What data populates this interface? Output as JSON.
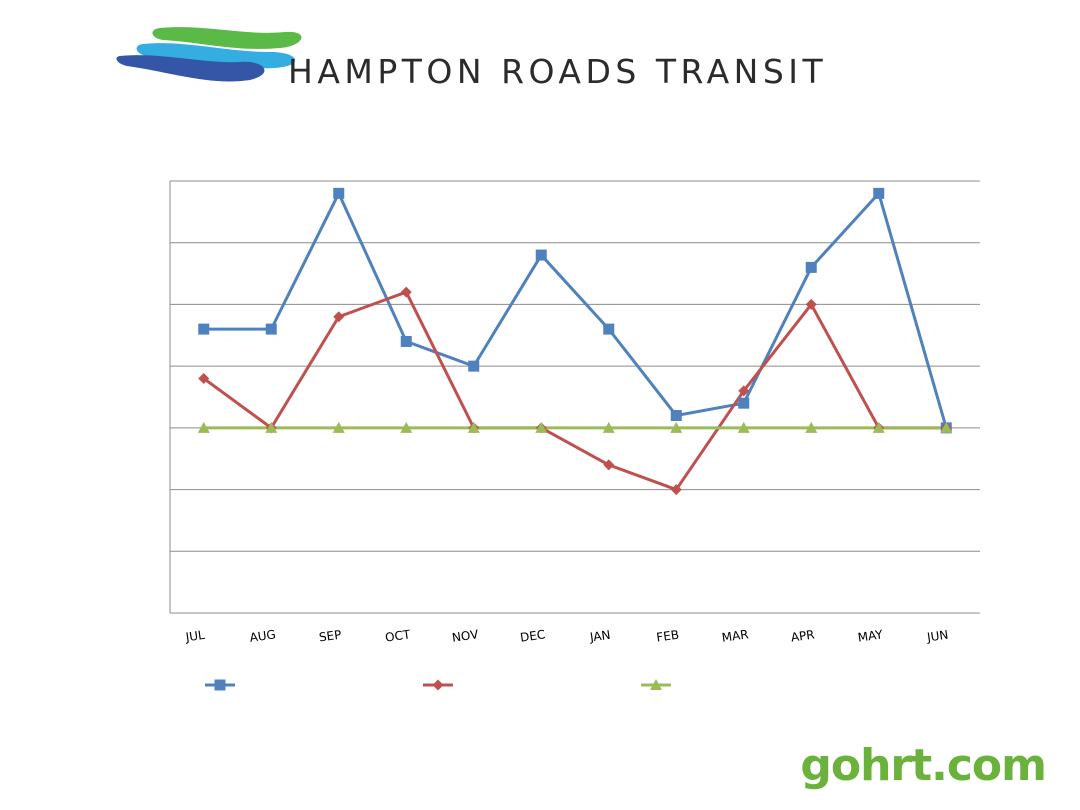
{
  "header": {
    "brand_name": "HAMPTON ROADS TRANSIT",
    "logo_icon": "hrt-wave-logo",
    "logo_colors": [
      "#5bb947",
      "#34aee0",
      "#3556a6"
    ]
  },
  "footer": {
    "url": "gohrt.com",
    "url_color": "#6ab23c"
  },
  "chart_data": {
    "type": "line",
    "categories": [
      "JUL",
      "AUG",
      "SEP",
      "OCT",
      "NOV",
      "DEC",
      "JAN",
      "FEB",
      "MAR",
      "APR",
      "MAY",
      "JUN"
    ],
    "title": "",
    "xlabel": "",
    "ylabel": "",
    "ylim": [
      -3,
      4
    ],
    "y_tick_labels_visible": false,
    "grid": true,
    "legend_position": "bottom",
    "series": [
      {
        "values": [
          1.6,
          1.6,
          3.8,
          1.4,
          1.0,
          2.8,
          1.6,
          0.2,
          0.4,
          2.6,
          3.8,
          0.0
        ],
        "color": "#4f81bd",
        "marker": "square"
      },
      {
        "values": [
          0.8,
          0.0,
          1.8,
          2.2,
          0.0,
          0.0,
          -0.6,
          -1.0,
          0.6,
          2.0,
          0.0,
          0.0
        ],
        "color": "#c0504d",
        "marker": "diamond"
      },
      {
        "values": [
          0.0,
          0.0,
          0.0,
          0.0,
          0.0,
          0.0,
          0.0,
          0.0,
          0.0,
          0.0,
          0.0,
          0.0
        ],
        "color": "#9bbb59",
        "marker": "triangle"
      }
    ]
  }
}
